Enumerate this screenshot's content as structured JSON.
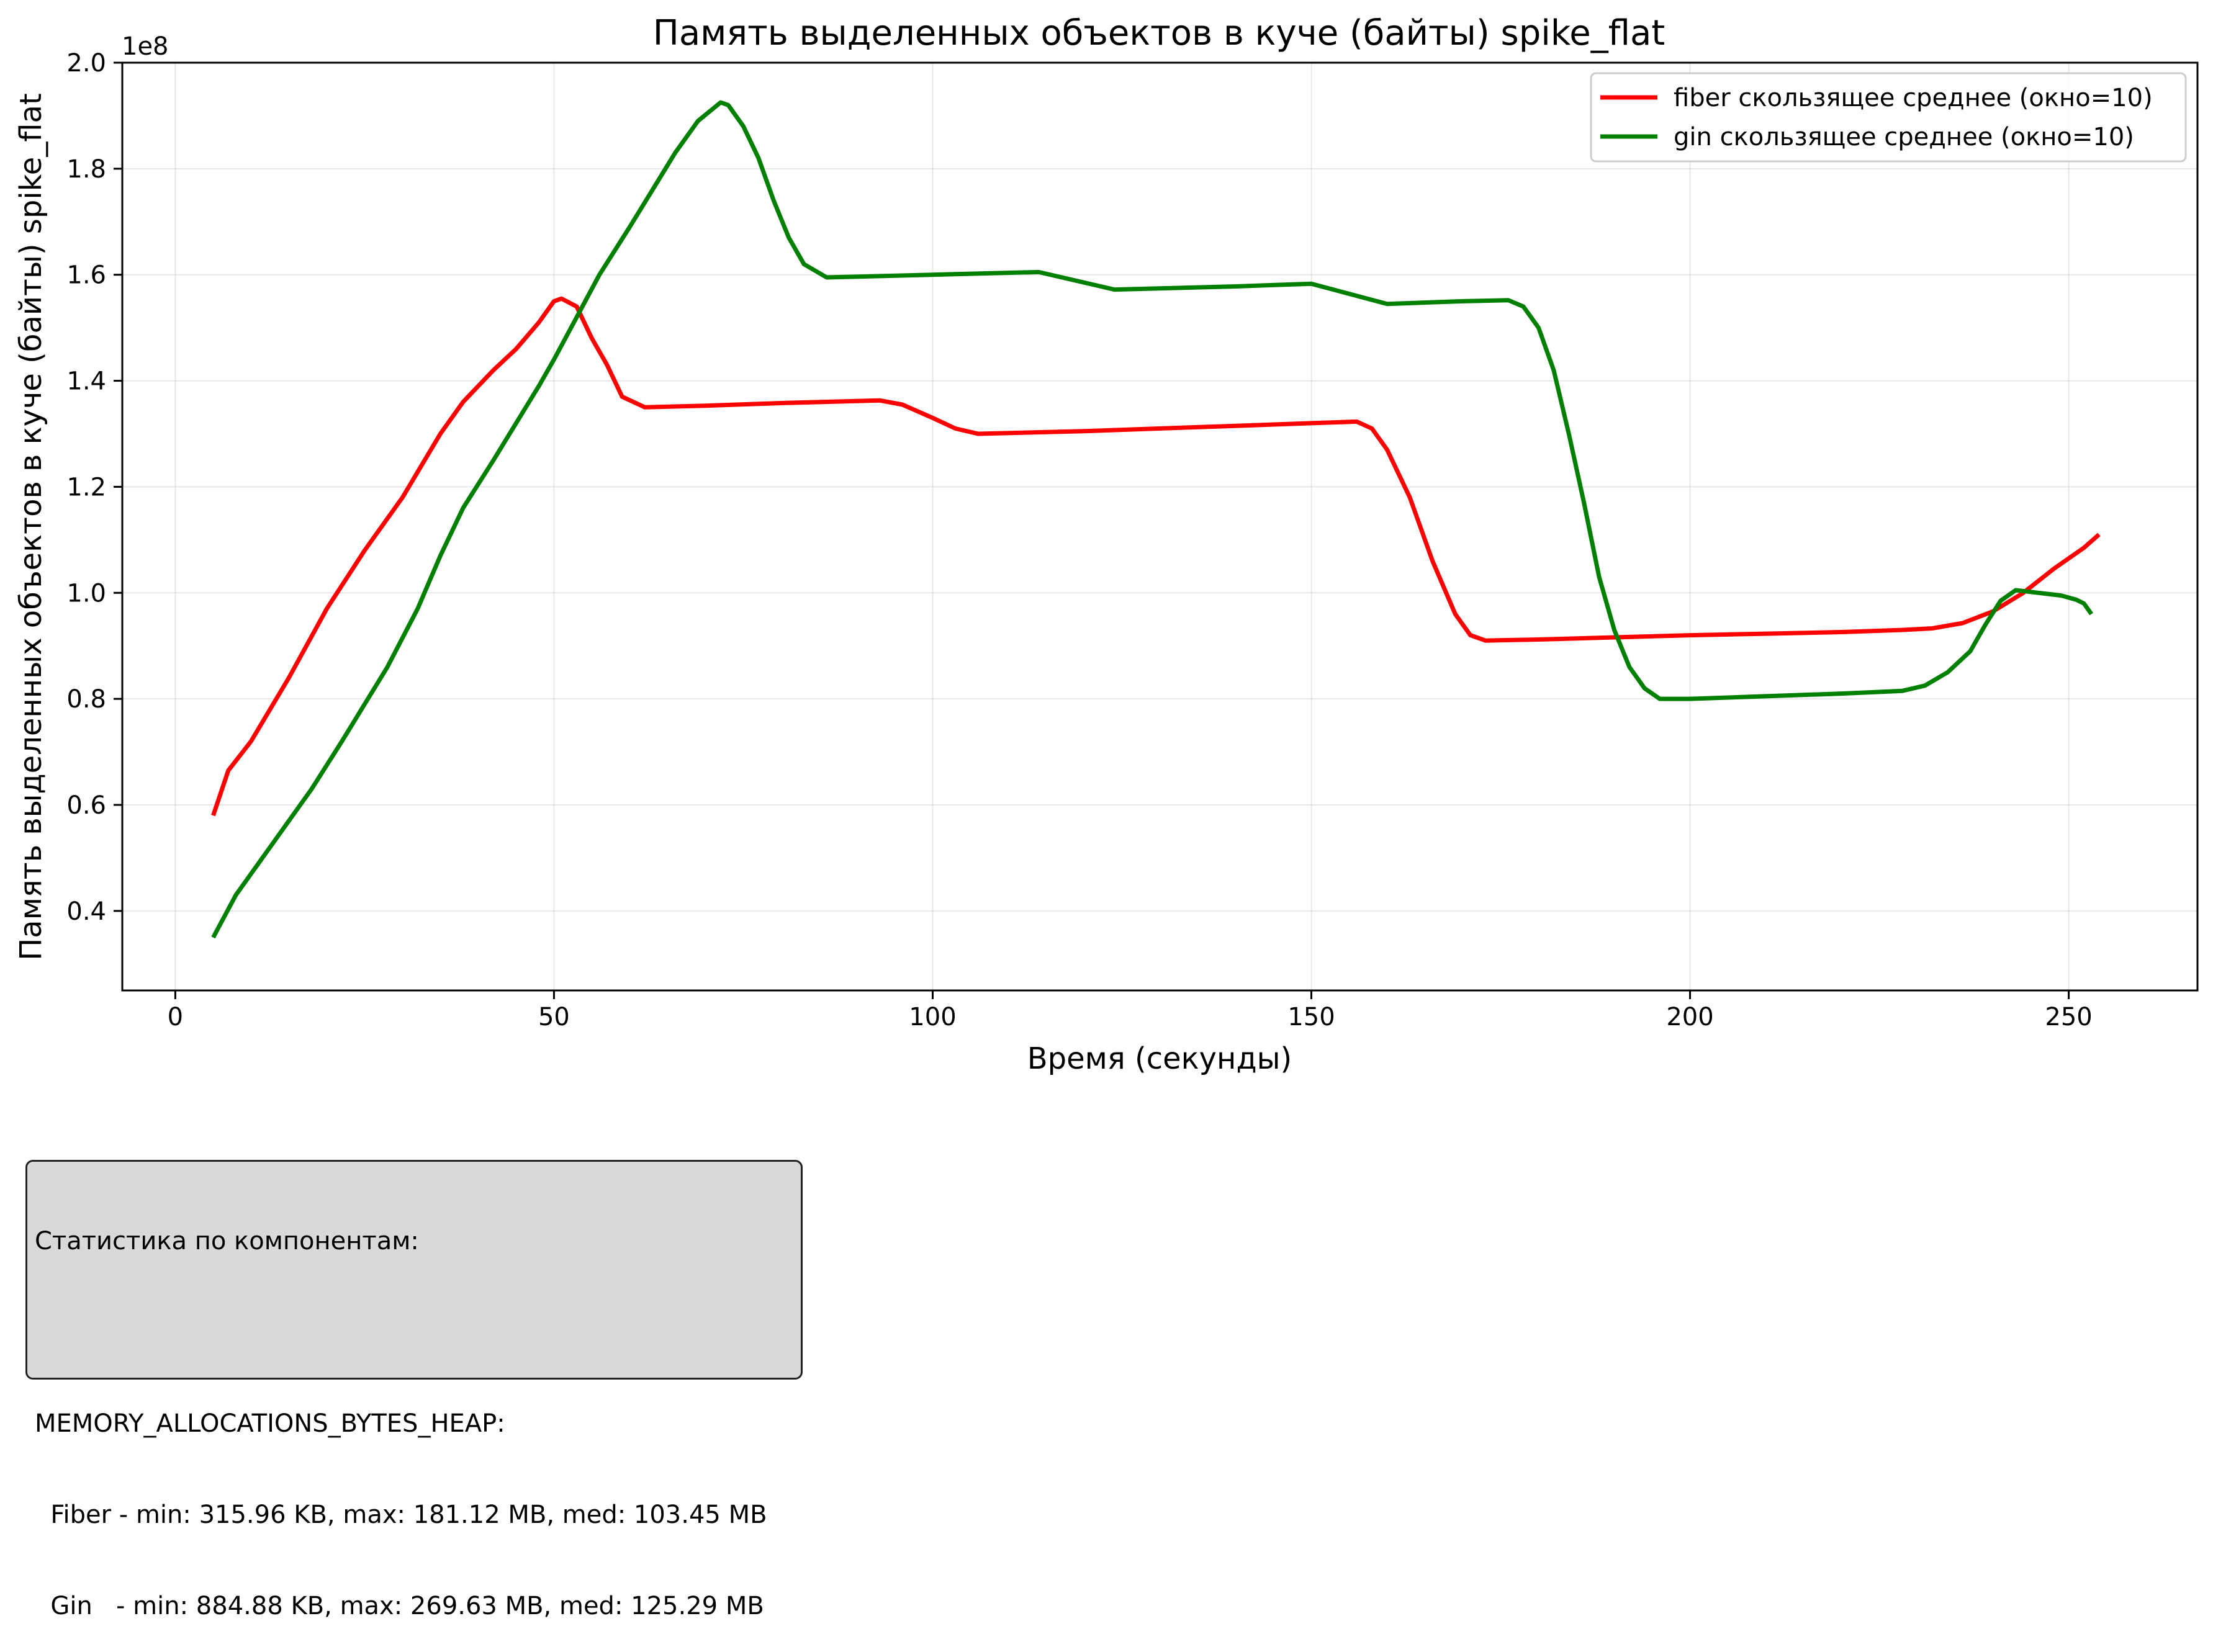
{
  "chart_data": {
    "type": "line",
    "title": "Память выделенных объектов в куче (байты) spike_flat",
    "xlabel": "Время (секунды)",
    "ylabel": "Память выделенных объектов в куче (байты) spike_flat",
    "y_multiplier_label": "1e8",
    "xlim": [
      -7,
      267
    ],
    "ylim": [
      25000000,
      200000000
    ],
    "x_ticks": [
      0,
      50,
      100,
      150,
      200,
      250
    ],
    "y_ticks": [
      40000000,
      60000000,
      80000000,
      100000000,
      120000000,
      140000000,
      160000000,
      180000000,
      200000000
    ],
    "y_tick_labels": [
      "0.4",
      "0.6",
      "0.8",
      "1.0",
      "1.2",
      "1.4",
      "1.6",
      "1.8",
      "2.0"
    ],
    "x_tick_labels": [
      "0",
      "50",
      "100",
      "150",
      "200",
      "250"
    ],
    "grid": true,
    "legend_position": "top-right",
    "series": [
      {
        "name": "fiber скользящее среднее (окно=10)",
        "color": "#ff0000",
        "points": [
          [
            5,
            58000000
          ],
          [
            7,
            66500000
          ],
          [
            10,
            72000000
          ],
          [
            15,
            84000000
          ],
          [
            20,
            97000000
          ],
          [
            25,
            108000000
          ],
          [
            30,
            118000000
          ],
          [
            35,
            130000000
          ],
          [
            38,
            136000000
          ],
          [
            42,
            142000000
          ],
          [
            45,
            146000000
          ],
          [
            48,
            151000000
          ],
          [
            50,
            155000000
          ],
          [
            51,
            155500000
          ],
          [
            53,
            154000000
          ],
          [
            55,
            148000000
          ],
          [
            57,
            143000000
          ],
          [
            59,
            137000000
          ],
          [
            62,
            135000000
          ],
          [
            70,
            135300000
          ],
          [
            80,
            135800000
          ],
          [
            93,
            136300000
          ],
          [
            96,
            135500000
          ],
          [
            100,
            133000000
          ],
          [
            103,
            131000000
          ],
          [
            106,
            130000000
          ],
          [
            120,
            130500000
          ],
          [
            140,
            131500000
          ],
          [
            150,
            132000000
          ],
          [
            156,
            132300000
          ],
          [
            158,
            131000000
          ],
          [
            160,
            127000000
          ],
          [
            163,
            118000000
          ],
          [
            166,
            106000000
          ],
          [
            169,
            96000000
          ],
          [
            171,
            92000000
          ],
          [
            173,
            91000000
          ],
          [
            180,
            91200000
          ],
          [
            200,
            92000000
          ],
          [
            210,
            92300000
          ],
          [
            220,
            92600000
          ],
          [
            228,
            93000000
          ],
          [
            232,
            93300000
          ],
          [
            236,
            94300000
          ],
          [
            240,
            96500000
          ],
          [
            244,
            100000000
          ],
          [
            248,
            104500000
          ],
          [
            252,
            108500000
          ],
          [
            254,
            111000000
          ]
        ]
      },
      {
        "name": "gin скользящее среднее (окно=10)",
        "color": "#008000",
        "points": [
          [
            5,
            35000000
          ],
          [
            8,
            43000000
          ],
          [
            12,
            51000000
          ],
          [
            15,
            57000000
          ],
          [
            18,
            63000000
          ],
          [
            22,
            72000000
          ],
          [
            25,
            79000000
          ],
          [
            28,
            86000000
          ],
          [
            32,
            97000000
          ],
          [
            35,
            107000000
          ],
          [
            38,
            116000000
          ],
          [
            42,
            125000000
          ],
          [
            45,
            132000000
          ],
          [
            48,
            139000000
          ],
          [
            50,
            144000000
          ],
          [
            53,
            152000000
          ],
          [
            56,
            160000000
          ],
          [
            60,
            169000000
          ],
          [
            63,
            176000000
          ],
          [
            66,
            183000000
          ],
          [
            69,
            189000000
          ],
          [
            72,
            192500000
          ],
          [
            73,
            192000000
          ],
          [
            75,
            188000000
          ],
          [
            77,
            182000000
          ],
          [
            79,
            174000000
          ],
          [
            81,
            167000000
          ],
          [
            83,
            162000000
          ],
          [
            86,
            159500000
          ],
          [
            100,
            160000000
          ],
          [
            114,
            160500000
          ],
          [
            124,
            157200000
          ],
          [
            140,
            157800000
          ],
          [
            150,
            158300000
          ],
          [
            160,
            154500000
          ],
          [
            170,
            155000000
          ],
          [
            176,
            155200000
          ],
          [
            178,
            154000000
          ],
          [
            180,
            150000000
          ],
          [
            182,
            142000000
          ],
          [
            184,
            130000000
          ],
          [
            186,
            117000000
          ],
          [
            188,
            103000000
          ],
          [
            190,
            93000000
          ],
          [
            192,
            86000000
          ],
          [
            194,
            82000000
          ],
          [
            196,
            80000000
          ],
          [
            200,
            80000000
          ],
          [
            210,
            80500000
          ],
          [
            220,
            81000000
          ],
          [
            228,
            81500000
          ],
          [
            231,
            82500000
          ],
          [
            234,
            85000000
          ],
          [
            237,
            89000000
          ],
          [
            239,
            94000000
          ],
          [
            241,
            98500000
          ],
          [
            243,
            100500000
          ],
          [
            246,
            100000000
          ],
          [
            249,
            99500000
          ],
          [
            251,
            98700000
          ],
          [
            252,
            98000000
          ],
          [
            253,
            96000000
          ]
        ]
      }
    ]
  },
  "stats": {
    "title": "Статистика по компонентам:",
    "metric": "MEMORY_ALLOCATIONS_BYTES_HEAP:",
    "fiber_line": "  Fiber - min: 315.96 KB, max: 181.12 MB, med: 103.45 MB",
    "gin_line": "  Gin   - min: 884.88 KB, max: 269.63 MB, med: 125.29 MB"
  }
}
